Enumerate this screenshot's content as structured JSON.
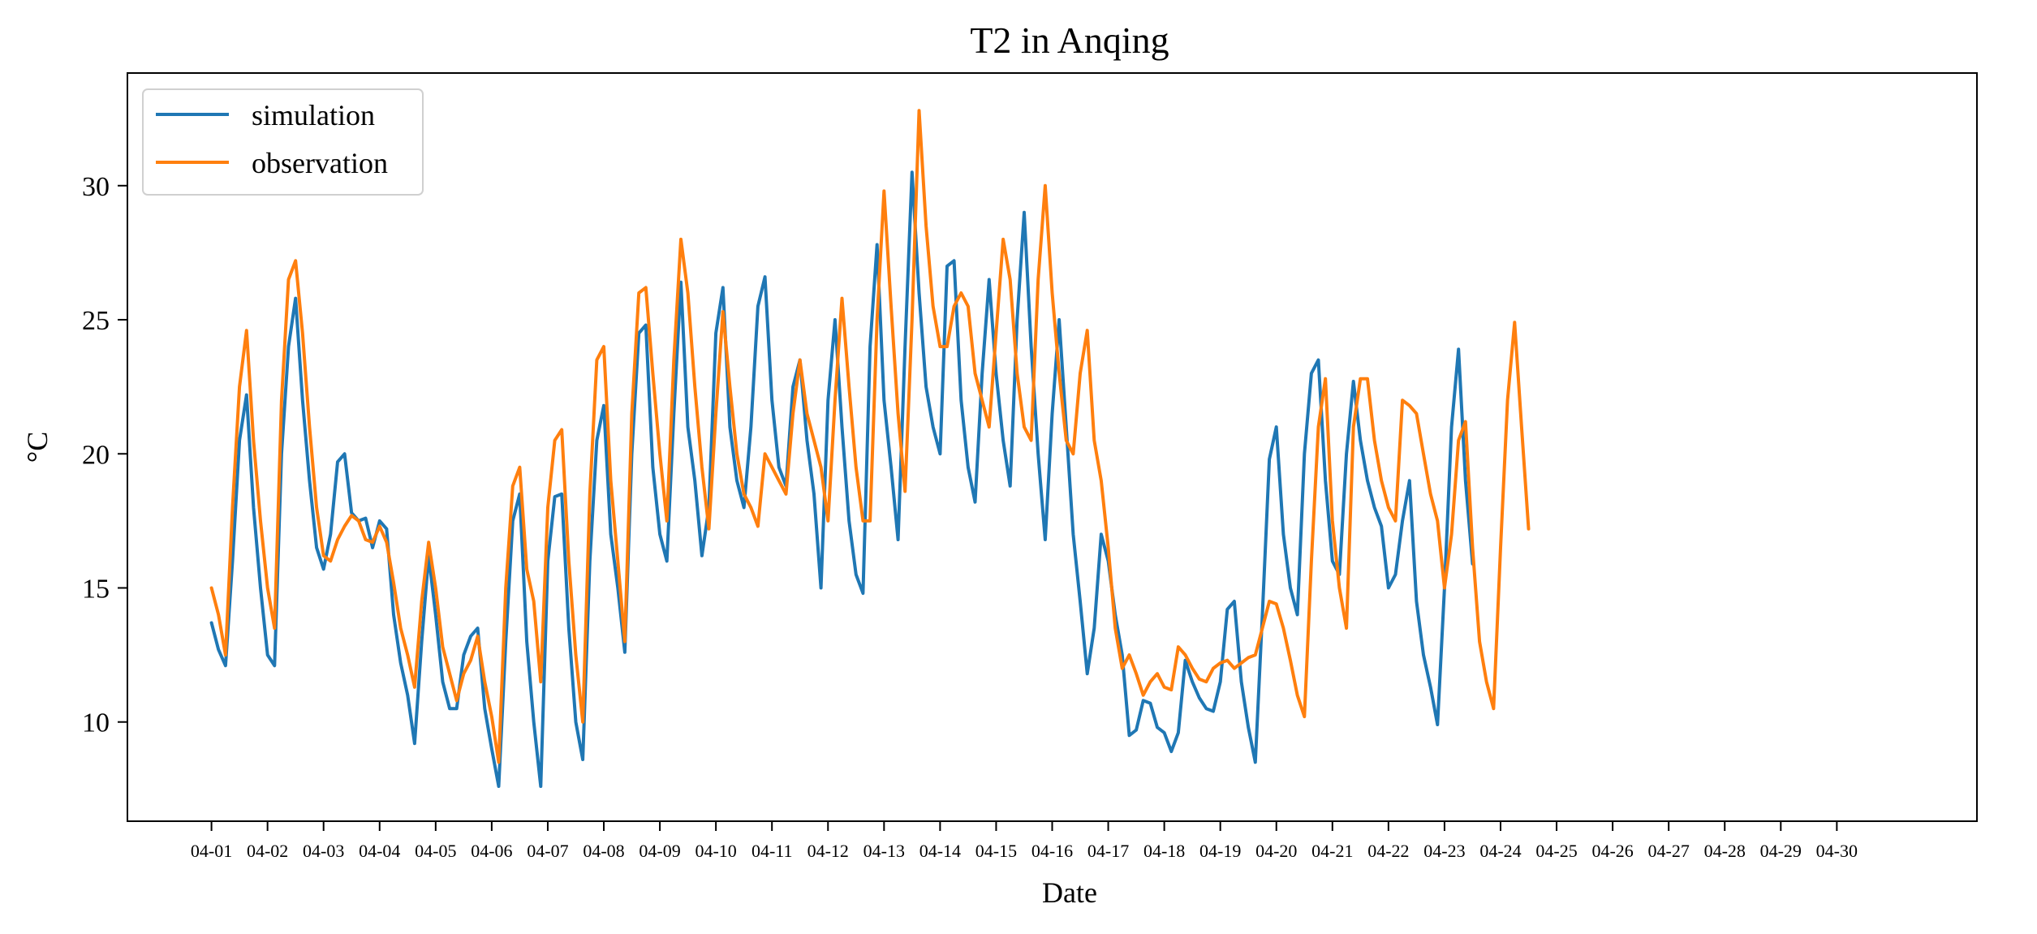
{
  "chart_data": {
    "type": "line",
    "title": "T2 in Anqing",
    "xlabel": "Date",
    "ylabel": "°C",
    "x_tick_labels": [
      "04-01",
      "04-02",
      "04-03",
      "04-04",
      "04-05",
      "04-06",
      "04-07",
      "04-08",
      "04-09",
      "04-10",
      "04-11",
      "04-12",
      "04-13",
      "04-14",
      "04-15",
      "04-16",
      "04-17",
      "04-18",
      "04-19",
      "04-20",
      "04-21",
      "04-22",
      "04-23",
      "04-24",
      "04-25",
      "04-26",
      "04-27",
      "04-28",
      "04-29",
      "04-30"
    ],
    "y_ticks": [
      10,
      15,
      20,
      25,
      30
    ],
    "xlim": [
      -1.5,
      31.5
    ],
    "ylim": [
      6.3,
      34.2
    ],
    "grid": false,
    "legend_position": "top-left",
    "sample_interval_days": 0.125,
    "series": [
      {
        "name": "simulation",
        "color": "#1f77b4",
        "values": [
          13.7,
          12.7,
          12.1,
          16.0,
          20.5,
          22.2,
          18.0,
          15.0,
          12.5,
          12.1,
          20.0,
          24.0,
          25.8,
          22.0,
          19.0,
          16.5,
          15.7,
          17.0,
          19.7,
          20.0,
          17.8,
          17.5,
          17.6,
          16.5,
          17.5,
          17.2,
          14.0,
          12.2,
          11.0,
          9.2,
          13.0,
          16.2,
          14.0,
          11.5,
          10.5,
          10.5,
          12.5,
          13.2,
          13.5,
          10.5,
          9.0,
          7.6,
          13.0,
          17.5,
          18.5,
          13.0,
          10.0,
          7.6,
          16.0,
          18.4,
          18.5,
          13.5,
          10.0,
          8.6,
          16.0,
          20.5,
          21.8,
          17.0,
          15.0,
          12.6,
          20.0,
          24.5,
          24.8,
          19.5,
          17.0,
          16.0,
          21.5,
          26.4,
          21.0,
          19.0,
          16.2,
          18.0,
          24.5,
          26.2,
          21.0,
          19.0,
          18.0,
          21.0,
          25.5,
          26.6,
          22.0,
          19.5,
          18.8,
          22.5,
          23.5,
          20.5,
          18.5,
          15.0,
          22.0,
          25.0,
          21.0,
          17.5,
          15.5,
          14.8,
          24.0,
          27.8,
          22.0,
          19.5,
          16.8,
          24.0,
          30.5,
          26.0,
          22.5,
          21.0,
          20.0,
          27.0,
          27.2,
          22.0,
          19.5,
          18.2,
          23.0,
          26.5,
          23.0,
          20.5,
          18.8,
          25.0,
          29.0,
          24.0,
          20.0,
          16.8,
          21.5,
          25.0,
          21.0,
          17.0,
          14.5,
          11.8,
          13.5,
          17.0,
          16.0,
          14.0,
          12.5,
          9.5,
          9.7,
          10.8,
          10.7,
          9.8,
          9.6,
          8.9,
          9.6,
          12.3,
          11.5,
          10.9,
          10.5,
          10.4,
          11.5,
          14.2,
          14.5,
          11.5,
          9.8,
          8.5,
          14.0,
          19.8,
          21.0,
          17.0,
          15.0,
          14.0,
          20.0,
          23.0,
          23.5,
          19.0,
          16.0,
          15.5,
          20.0,
          22.7,
          20.5,
          19.0,
          18.0,
          17.3,
          15.0,
          15.5,
          17.5,
          19.0,
          14.5,
          12.5,
          11.3,
          9.9,
          15.0,
          21.0,
          23.9,
          19.0,
          15.9
        ]
      },
      {
        "name": "observation",
        "color": "#ff7f0e",
        "values": [
          15.0,
          14.0,
          12.5,
          18.0,
          22.5,
          24.6,
          20.5,
          17.5,
          15.0,
          13.5,
          22.0,
          26.5,
          27.2,
          24.5,
          21.0,
          18.0,
          16.2,
          16.0,
          16.8,
          17.3,
          17.7,
          17.5,
          16.8,
          16.7,
          17.3,
          16.7,
          15.2,
          13.5,
          12.5,
          11.3,
          14.5,
          16.7,
          15.0,
          12.8,
          11.8,
          10.8,
          11.8,
          12.3,
          13.2,
          11.5,
          10.2,
          8.5,
          15.0,
          18.8,
          19.5,
          15.7,
          14.5,
          11.5,
          18.0,
          20.5,
          20.9,
          16.0,
          12.5,
          10.0,
          18.5,
          23.5,
          24.0,
          19.0,
          16.0,
          13.0,
          21.5,
          26.0,
          26.2,
          23.0,
          20.0,
          17.5,
          23.5,
          28.0,
          26.0,
          22.5,
          19.5,
          17.2,
          21.5,
          25.3,
          22.5,
          20.0,
          18.5,
          18.0,
          17.3,
          20.0,
          19.5,
          19.0,
          18.5,
          21.5,
          23.5,
          21.5,
          20.5,
          19.5,
          17.5,
          22.0,
          25.8,
          22.5,
          19.5,
          17.5,
          17.5,
          25.0,
          29.8,
          25.5,
          21.5,
          18.6,
          25.0,
          32.8,
          28.5,
          25.5,
          24.0,
          24.0,
          25.5,
          26.0,
          25.5,
          23.0,
          22.0,
          21.0,
          24.5,
          28.0,
          26.5,
          23.0,
          21.0,
          20.5,
          26.5,
          30.0,
          26.0,
          23.0,
          20.5,
          20.0,
          23.0,
          24.6,
          20.5,
          19.0,
          16.5,
          13.5,
          12.0,
          12.5,
          11.8,
          11.0,
          11.5,
          11.8,
          11.3,
          11.2,
          12.8,
          12.5,
          12.0,
          11.6,
          11.5,
          12.0,
          12.2,
          12.3,
          12.0,
          12.2,
          12.4,
          12.5,
          13.5,
          14.5,
          14.4,
          13.5,
          12.3,
          11.0,
          10.2,
          16.0,
          21.0,
          22.8,
          17.5,
          15.0,
          13.5,
          21.0,
          22.8,
          22.8,
          20.5,
          19.0,
          18.0,
          17.5,
          22.0,
          21.8,
          21.5,
          20.0,
          18.5,
          17.5,
          15.0,
          17.0,
          20.5,
          21.2,
          16.5,
          13.0,
          11.5,
          10.5,
          16.5,
          22.0,
          24.9,
          21.0,
          17.2
        ]
      }
    ]
  }
}
